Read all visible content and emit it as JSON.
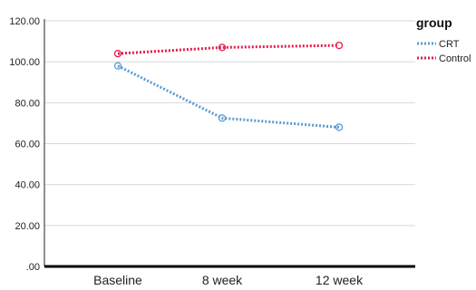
{
  "chart_data": {
    "type": "line",
    "title": "",
    "xlabel": "",
    "ylabel": "",
    "categories": [
      "Baseline",
      "8 week",
      "12 week"
    ],
    "y_ticks": [
      "120.00",
      "100.00",
      "80.00",
      "60.00",
      "40.00",
      "20.00",
      ".00"
    ],
    "ylim": [
      0,
      120
    ],
    "grid": "horizontal",
    "legend": {
      "title": "group",
      "placement": "top-right"
    },
    "series": [
      {
        "name": "CRT",
        "color": "#5b9bd5",
        "values": [
          98,
          72.5,
          68
        ]
      },
      {
        "name": "Control",
        "color": "#e6194b",
        "values": [
          104,
          107,
          108
        ]
      }
    ]
  }
}
